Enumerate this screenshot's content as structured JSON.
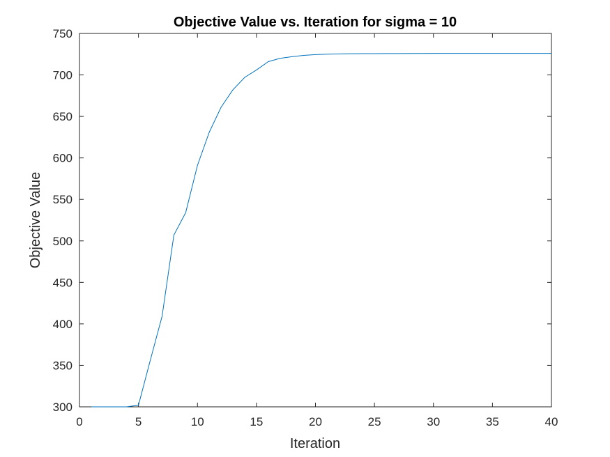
{
  "chart_data": {
    "type": "line",
    "title": "Objective Value vs. Iteration for sigma = 10",
    "xlabel": "Iteration",
    "ylabel": "Objective Value",
    "xlim": [
      0,
      40
    ],
    "ylim": [
      300,
      750
    ],
    "xticks": [
      0,
      5,
      10,
      15,
      20,
      25,
      30,
      35,
      40
    ],
    "yticks": [
      300,
      350,
      400,
      450,
      500,
      550,
      600,
      650,
      700,
      750
    ],
    "grid": false,
    "line_color": "#0072BD",
    "series": [
      {
        "x": [
          1,
          2,
          3,
          4,
          5,
          6,
          7,
          8,
          9,
          10,
          11,
          12,
          13,
          14,
          15,
          16,
          17,
          18,
          19,
          20,
          21,
          22,
          23,
          24,
          25,
          26,
          27,
          28,
          29,
          30,
          31,
          32,
          33,
          34,
          35,
          36,
          37,
          38,
          39,
          40
        ],
        "values": [
          300,
          300,
          300,
          300,
          302,
          356,
          409,
          507,
          534,
          591,
          631,
          661,
          682,
          697,
          706,
          716,
          720,
          722,
          723.5,
          724.5,
          725,
          725.3,
          725.5,
          725.6,
          725.7,
          725.8,
          725.8,
          725.9,
          725.9,
          726,
          726,
          726,
          726,
          726,
          726,
          726,
          726,
          726,
          726,
          726
        ]
      }
    ]
  }
}
